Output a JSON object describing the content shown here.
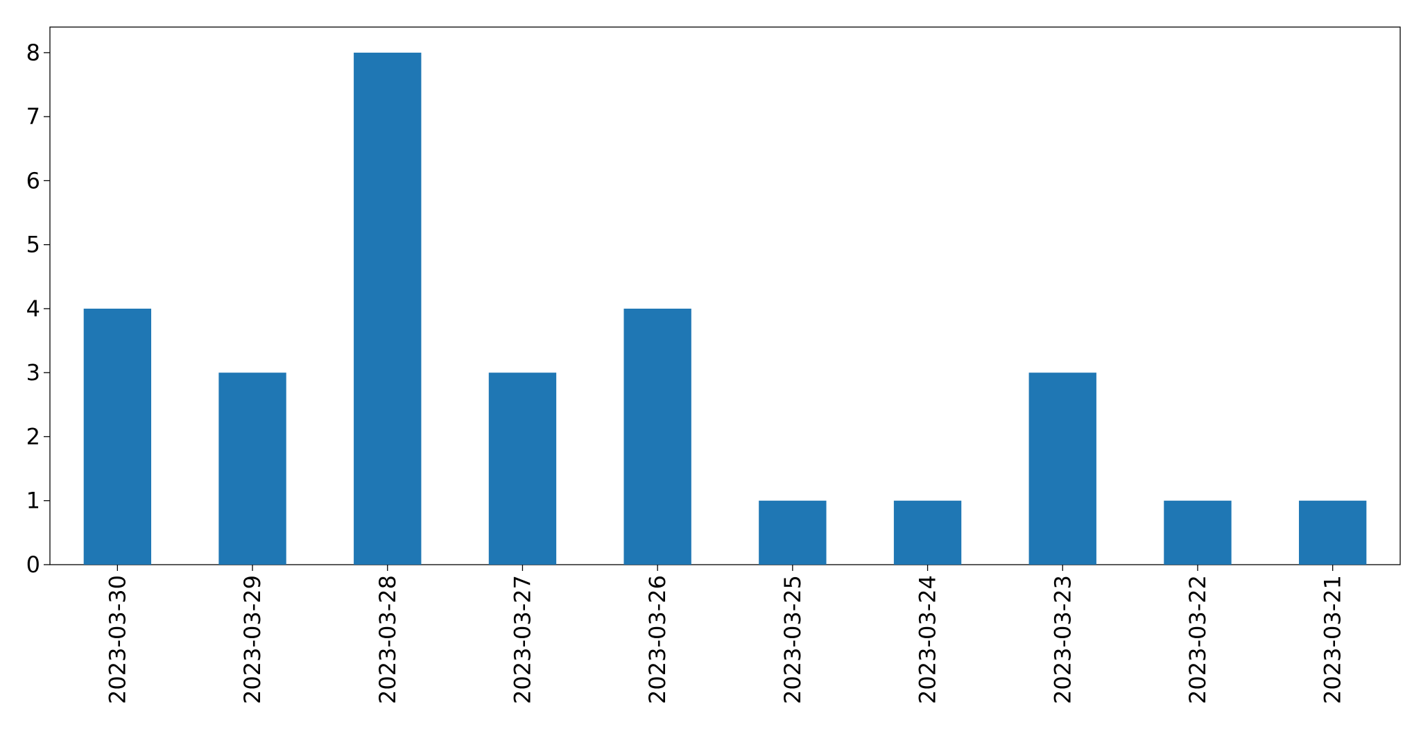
{
  "chart_data": {
    "type": "bar",
    "categories": [
      "2023-03-30",
      "2023-03-29",
      "2023-03-28",
      "2023-03-27",
      "2023-03-26",
      "2023-03-25",
      "2023-03-24",
      "2023-03-23",
      "2023-03-22",
      "2023-03-21"
    ],
    "values": [
      4,
      3,
      8,
      3,
      4,
      1,
      1,
      3,
      1,
      1
    ],
    "color": "#1f77b4",
    "ylim": [
      0,
      8.4
    ],
    "yticks": [
      0,
      1,
      2,
      3,
      4,
      5,
      6,
      7,
      8
    ],
    "grid": false
  }
}
